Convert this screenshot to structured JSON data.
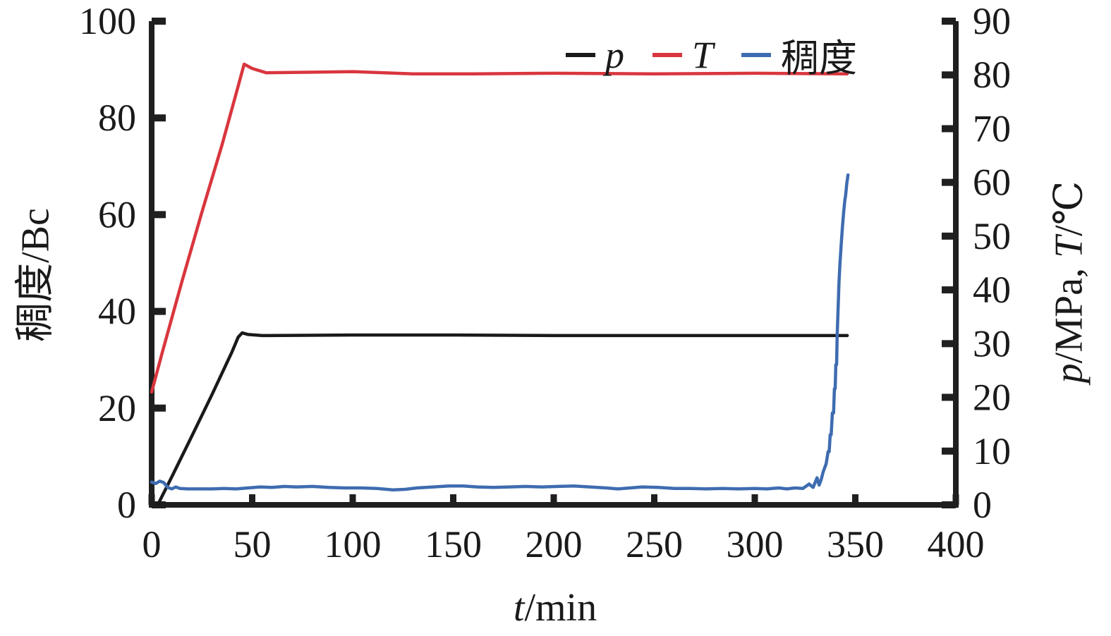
{
  "figure": {
    "background": "#ffffff",
    "axis_color": "#1f1f1f"
  },
  "chart_data": {
    "type": "line",
    "title": "",
    "grid": false,
    "legend_position": "top-inside",
    "xlabel_segments": [
      {
        "text": "t",
        "italic": true
      },
      {
        "text": "/min",
        "italic": false
      }
    ],
    "ylabel_left_segments": [
      {
        "text": "稠度/Bc",
        "italic": false
      }
    ],
    "ylabel_right_segments": [
      {
        "text": "p",
        "italic": true
      },
      {
        "text": "/MPa, ",
        "italic": false
      },
      {
        "text": "T",
        "italic": true
      },
      {
        "text": "/℃",
        "italic": false
      }
    ],
    "x_axis": {
      "label": "t/min",
      "min": 0,
      "max": 400,
      "tick_step": 50,
      "ticks": [
        0,
        50,
        100,
        150,
        200,
        250,
        300,
        350,
        400
      ]
    },
    "y_axis_left": {
      "label": "稠度/Bc",
      "min": 0,
      "max": 100,
      "tick_step": 20,
      "ticks": [
        0,
        20,
        40,
        60,
        80,
        100
      ]
    },
    "y_axis_right": {
      "label": "p/MPa, T/℃",
      "min": 0,
      "max": 90,
      "tick_step": 10,
      "ticks": [
        0,
        10,
        20,
        30,
        40,
        50,
        60,
        70,
        80,
        90
      ]
    },
    "series": [
      {
        "id": "p",
        "name": "p",
        "name_italic": true,
        "color": "#1a1a1a",
        "axis": "right",
        "unit": "MPa",
        "points": [
          [
            3,
            0
          ],
          [
            10,
            5.2
          ],
          [
            20,
            12.8
          ],
          [
            30,
            20.5
          ],
          [
            40,
            28.5
          ],
          [
            43,
            31.2
          ],
          [
            45,
            32.0
          ],
          [
            48,
            31.7
          ],
          [
            55,
            31.5
          ],
          [
            100,
            31.6
          ],
          [
            150,
            31.6
          ],
          [
            200,
            31.5
          ],
          [
            250,
            31.5
          ],
          [
            300,
            31.5
          ],
          [
            346,
            31.5
          ]
        ]
      },
      {
        "id": "T",
        "name": "T",
        "name_italic": true,
        "color": "#d9363e",
        "axis": "right",
        "unit": "℃",
        "points": [
          [
            0,
            21
          ],
          [
            5,
            28
          ],
          [
            15,
            41.5
          ],
          [
            25,
            54.5
          ],
          [
            35,
            67
          ],
          [
            42,
            76.5
          ],
          [
            46,
            82
          ],
          [
            50,
            81.2
          ],
          [
            57,
            80.4
          ],
          [
            80,
            80.5
          ],
          [
            100,
            80.6
          ],
          [
            130,
            80.2
          ],
          [
            160,
            80.2
          ],
          [
            200,
            80.3
          ],
          [
            250,
            80.2
          ],
          [
            300,
            80.3
          ],
          [
            346,
            80.2
          ]
        ]
      },
      {
        "id": "consistency",
        "name": "稠度",
        "name_italic": false,
        "color": "#3e6cb0",
        "axis": "left",
        "unit": "Bc",
        "points": [
          [
            0,
            4.7
          ],
          [
            2,
            4.4
          ],
          [
            4,
            4.9
          ],
          [
            6,
            4.6
          ],
          [
            8,
            3.6
          ],
          [
            10,
            3.3
          ],
          [
            12,
            3.7
          ],
          [
            14,
            3.4
          ],
          [
            18,
            3.3
          ],
          [
            24,
            3.3
          ],
          [
            30,
            3.3
          ],
          [
            36,
            3.4
          ],
          [
            42,
            3.3
          ],
          [
            48,
            3.5
          ],
          [
            54,
            3.7
          ],
          [
            60,
            3.6
          ],
          [
            66,
            3.8
          ],
          [
            72,
            3.7
          ],
          [
            80,
            3.8
          ],
          [
            88,
            3.6
          ],
          [
            96,
            3.5
          ],
          [
            104,
            3.5
          ],
          [
            112,
            3.4
          ],
          [
            120,
            3.1
          ],
          [
            126,
            3.2
          ],
          [
            132,
            3.5
          ],
          [
            140,
            3.7
          ],
          [
            148,
            3.9
          ],
          [
            155,
            3.9
          ],
          [
            162,
            3.7
          ],
          [
            170,
            3.6
          ],
          [
            178,
            3.7
          ],
          [
            186,
            3.8
          ],
          [
            194,
            3.7
          ],
          [
            202,
            3.8
          ],
          [
            210,
            3.9
          ],
          [
            218,
            3.7
          ],
          [
            226,
            3.5
          ],
          [
            232,
            3.3
          ],
          [
            238,
            3.5
          ],
          [
            244,
            3.7
          ],
          [
            252,
            3.6
          ],
          [
            260,
            3.4
          ],
          [
            268,
            3.4
          ],
          [
            276,
            3.3
          ],
          [
            284,
            3.4
          ],
          [
            292,
            3.3
          ],
          [
            300,
            3.4
          ],
          [
            306,
            3.3
          ],
          [
            312,
            3.5
          ],
          [
            316,
            3.3
          ],
          [
            320,
            3.5
          ],
          [
            324,
            3.4
          ],
          [
            327,
            4.3
          ],
          [
            329,
            3.6
          ],
          [
            331,
            5.6
          ],
          [
            332,
            4.1
          ],
          [
            333,
            5.2
          ],
          [
            334,
            6.8
          ],
          [
            335.5,
            8.5
          ],
          [
            336.5,
            11
          ],
          [
            337,
            11
          ],
          [
            337.5,
            14.5
          ],
          [
            338,
            14.5
          ],
          [
            338.6,
            19
          ],
          [
            339.2,
            19
          ],
          [
            339.6,
            24
          ],
          [
            340,
            24
          ],
          [
            340.3,
            29
          ],
          [
            340.7,
            29
          ],
          [
            341,
            35
          ],
          [
            341.4,
            40
          ],
          [
            341.9,
            46
          ],
          [
            342.4,
            50
          ],
          [
            343,
            54
          ],
          [
            343.6,
            57.5
          ],
          [
            344.2,
            60.5
          ],
          [
            344.8,
            63
          ],
          [
            345.2,
            64
          ],
          [
            345.8,
            66.5
          ],
          [
            346.4,
            68.2
          ]
        ]
      }
    ]
  }
}
